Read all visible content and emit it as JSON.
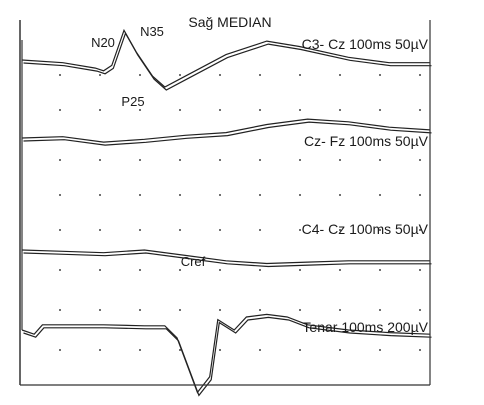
{
  "chart_data": {
    "type": "line",
    "title": "Sağ MEDIAN",
    "time_window_ms": 100,
    "grid": true,
    "traces": [
      {
        "label": "C3- Cz 100ms 50µV",
        "peaks": [
          "N20",
          "N35",
          "P25"
        ],
        "points_ms_uv": [
          [
            0,
            0
          ],
          [
            10,
            -2
          ],
          [
            18,
            -6
          ],
          [
            20,
            -8
          ],
          [
            22,
            -4
          ],
          [
            25,
            22
          ],
          [
            28,
            6
          ],
          [
            32,
            -12
          ],
          [
            35,
            -20
          ],
          [
            40,
            -12
          ],
          [
            50,
            4
          ],
          [
            60,
            14
          ],
          [
            68,
            10
          ],
          [
            80,
            2
          ],
          [
            90,
            -2
          ],
          [
            100,
            -2
          ]
        ]
      },
      {
        "label": "Cz- Fz 100ms 50µV",
        "peaks": [],
        "points_ms_uv": [
          [
            0,
            0
          ],
          [
            10,
            1
          ],
          [
            20,
            -3
          ],
          [
            30,
            -1
          ],
          [
            40,
            2
          ],
          [
            50,
            4
          ],
          [
            60,
            10
          ],
          [
            70,
            14
          ],
          [
            80,
            12
          ],
          [
            90,
            8
          ],
          [
            100,
            6
          ]
        ]
      },
      {
        "label": "C4- Cz 100ms 50µV",
        "peaks": [],
        "points_ms_uv": [
          [
            0,
            0
          ],
          [
            10,
            -1
          ],
          [
            20,
            -2
          ],
          [
            30,
            0
          ],
          [
            40,
            -4
          ],
          [
            50,
            -8
          ],
          [
            60,
            -10
          ],
          [
            70,
            -9
          ],
          [
            80,
            -8
          ],
          [
            90,
            -8
          ],
          [
            100,
            -8
          ]
        ]
      },
      {
        "label": "Tenar 100ms 200µV",
        "peaks": [
          "Cref"
        ],
        "points_ms_uv": [
          [
            0,
            0
          ],
          [
            3,
            -8
          ],
          [
            5,
            10
          ],
          [
            10,
            10
          ],
          [
            20,
            10
          ],
          [
            30,
            8
          ],
          [
            35,
            8
          ],
          [
            38,
            -15
          ],
          [
            43,
            -120
          ],
          [
            46,
            -90
          ],
          [
            48,
            20
          ],
          [
            52,
            0
          ],
          [
            55,
            25
          ],
          [
            60,
            30
          ],
          [
            65,
            25
          ],
          [
            70,
            10
          ],
          [
            80,
            0
          ],
          [
            90,
            -5
          ],
          [
            100,
            -8
          ]
        ]
      }
    ]
  }
}
